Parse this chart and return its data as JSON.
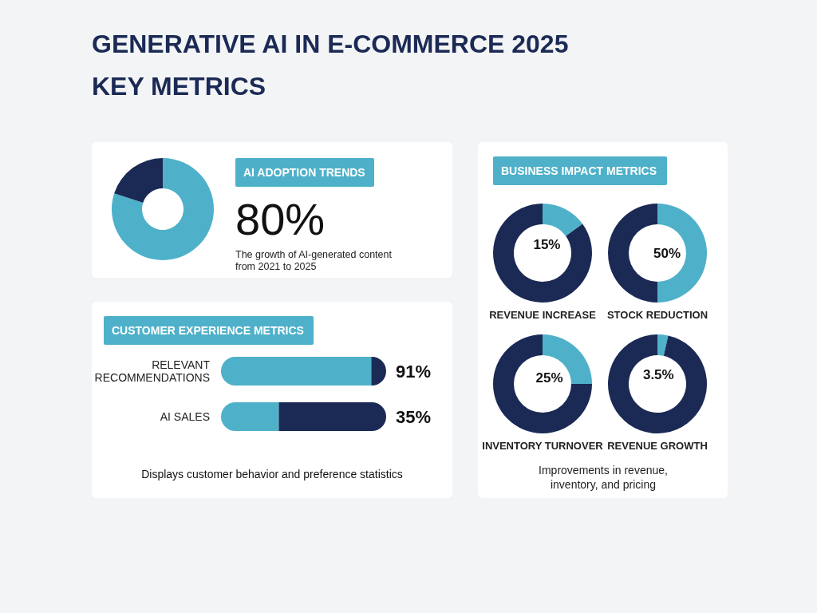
{
  "chart_data": [
    {
      "type": "donut",
      "title": "GENERATIVE AI IN E-COMMERCE 2025",
      "subtitle": "KEY METRICS",
      "categories": [
        null,
        null
      ],
      "values": [
        80,
        20
      ],
      "colors": [
        "#4eb1c9",
        "#1b2a55"
      ],
      "value_labels": [
        "80%",
        null
      ],
      "annotations": [
        "AI ADOPTION TRENDS",
        "The growth of AI-generated content from 2021 to 2025"
      ]
    },
    {
      "type": "bar",
      "orientation": "horizontal",
      "stacked": true,
      "title": "CUSTOMER EXPERIENCE METRICS",
      "categories": [
        "RELEVANT RECOMMENDATIONS",
        "AI SALES"
      ],
      "xlim": [
        0,
        100
      ],
      "tick_labels": "y",
      "series": [
        {
          "color": "#4eb1c9",
          "values": [
            91,
            35
          ],
          "value_labels": [
            "91%",
            "35%"
          ]
        },
        {
          "color": "#1b2a55",
          "values": [
            9,
            65
          ]
        }
      ],
      "annotations": [
        "Displays customer behavior and preference statistics"
      ]
    },
    {
      "type": "donut",
      "subtitle": "BUSINESS IMPACT METRICS",
      "title": "REVENUE INCREASE",
      "categories": [
        null,
        null
      ],
      "values": [
        15,
        85
      ],
      "colors": [
        "#4eb1c9",
        "#1b2a55"
      ],
      "value_labels": [
        "15%",
        null
      ]
    },
    {
      "type": "donut",
      "title": "STOCK REDUCTION",
      "categories": [
        null,
        null
      ],
      "values": [
        50,
        50
      ],
      "colors": [
        "#4eb1c9",
        "#1b2a55"
      ],
      "value_labels": [
        "50%",
        null
      ]
    },
    {
      "type": "donut",
      "title": "INVENTORY TURNOVER",
      "categories": [
        null,
        null
      ],
      "values": [
        25,
        75
      ],
      "colors": [
        "#4eb1c9",
        "#1b2a55"
      ],
      "value_labels": [
        "25%",
        null
      ]
    },
    {
      "type": "donut",
      "title": "REVENUE GROWTH",
      "categories": [
        null,
        null
      ],
      "values": [
        3.5,
        96.5
      ],
      "colors": [
        "#4eb1c9",
        "#1b2a55"
      ],
      "value_labels": [
        "3.5%",
        null
      ],
      "annotations": [
        "Improvements in revenue, inventory, and pricing"
      ]
    }
  ]
}
